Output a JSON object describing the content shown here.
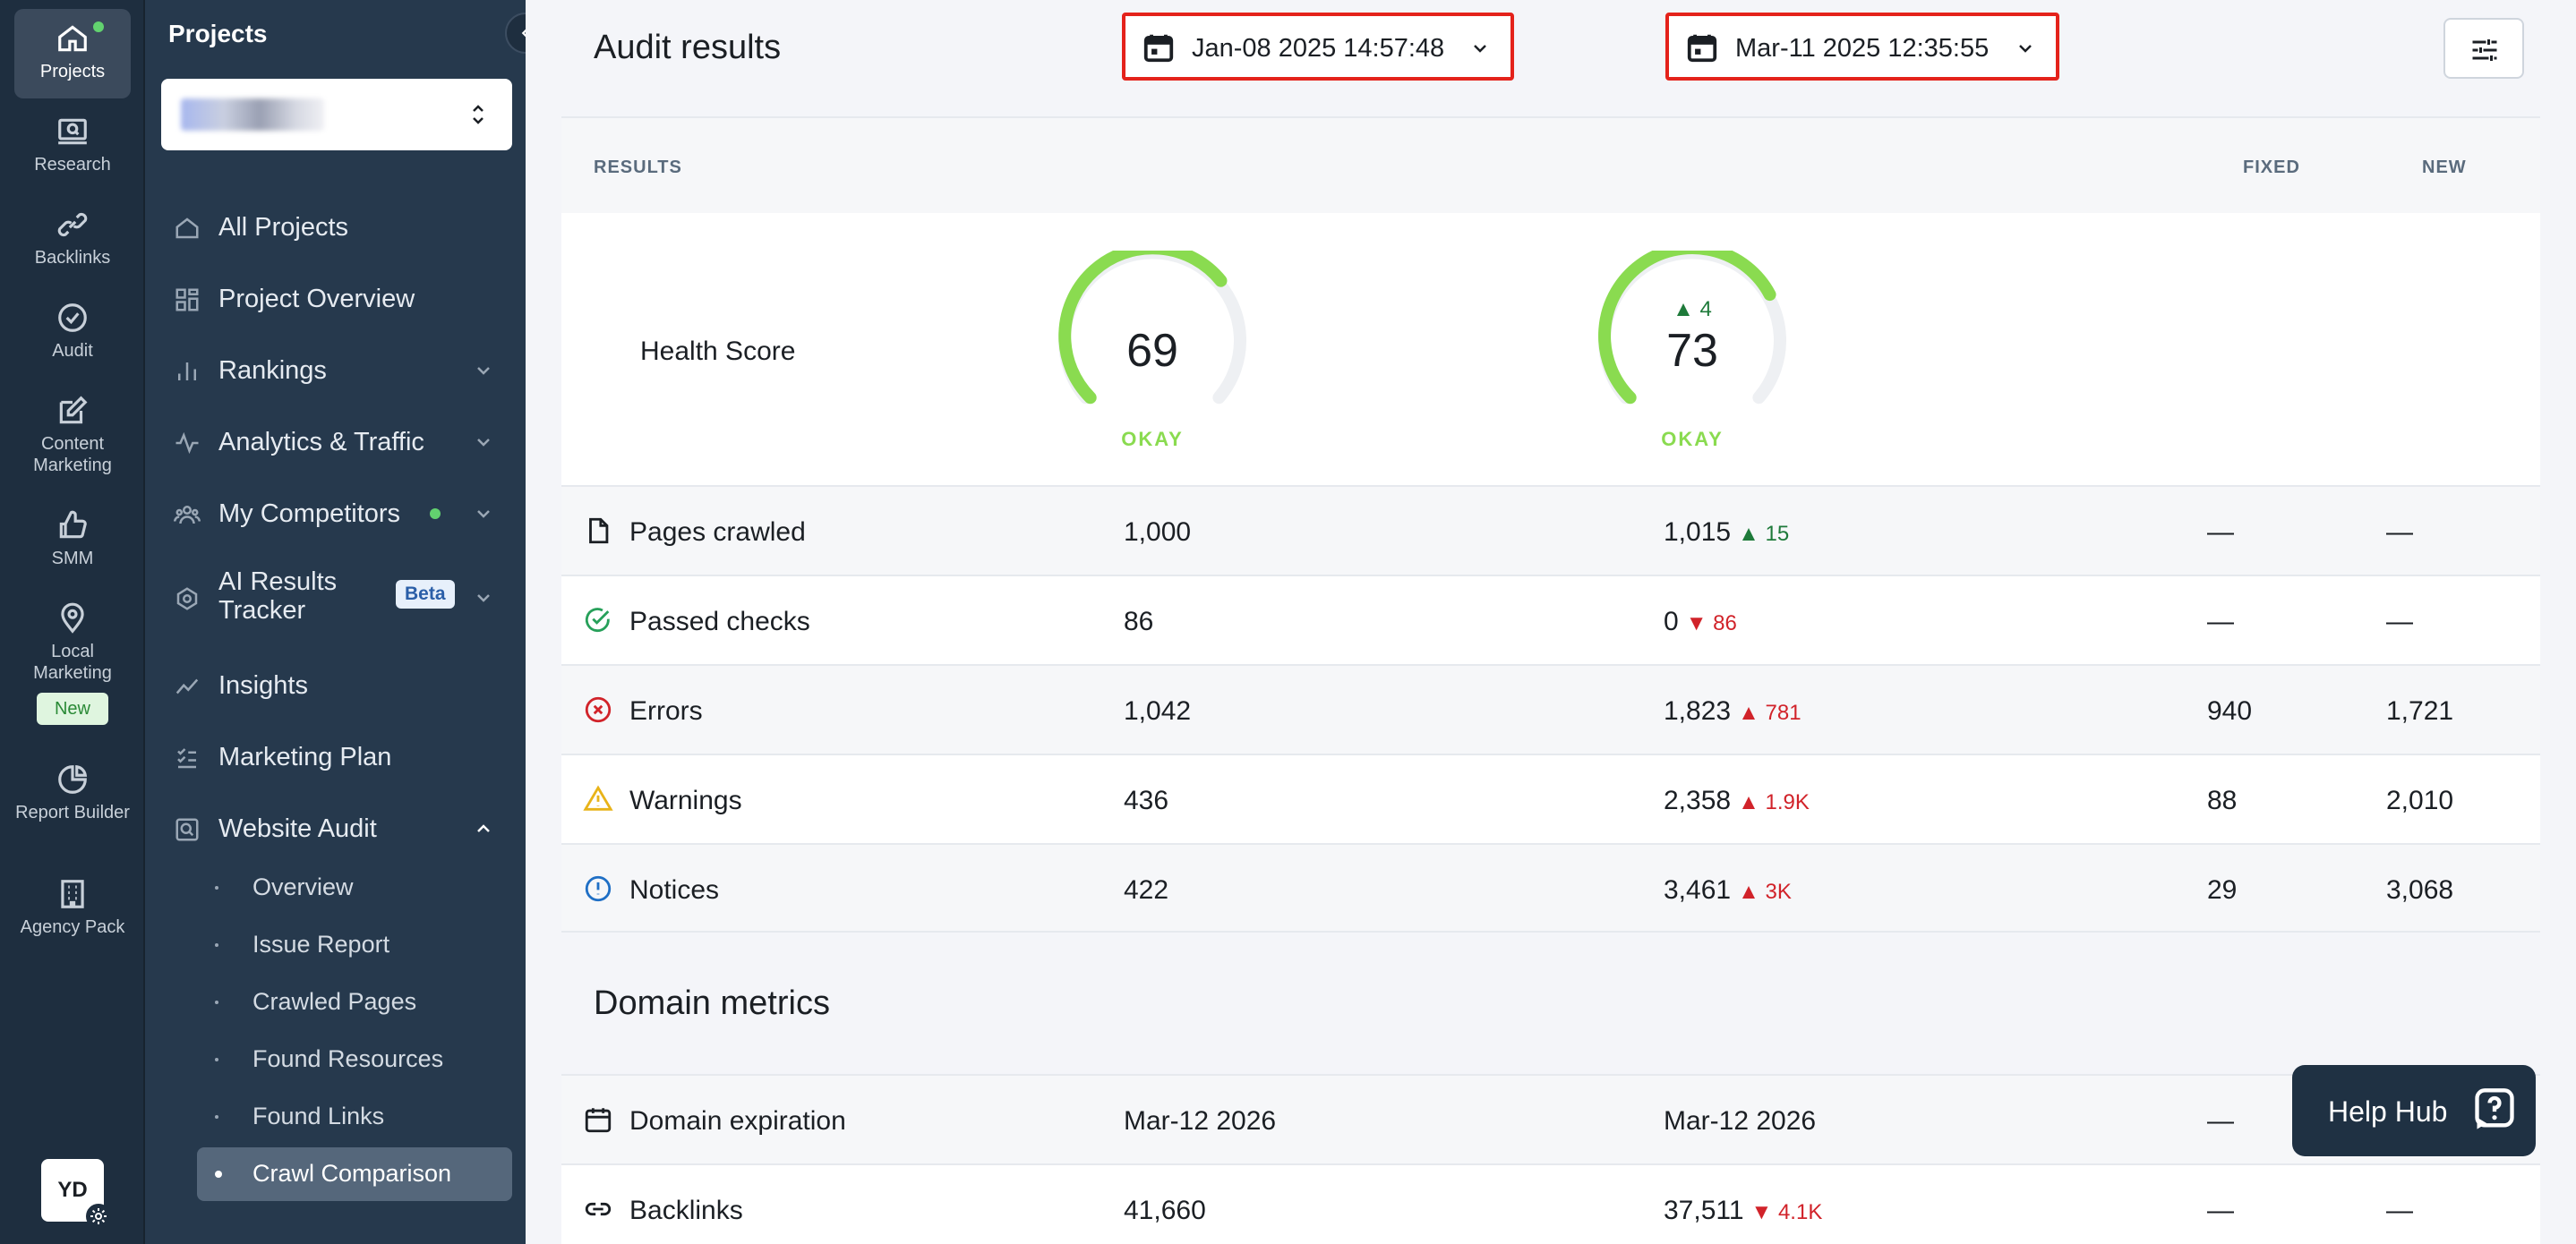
{
  "rail": {
    "items": [
      {
        "label": "Projects",
        "icon": "home-icon"
      },
      {
        "label": "Research",
        "icon": "research-icon"
      },
      {
        "label": "Backlinks",
        "icon": "link-icon"
      },
      {
        "label": "Audit",
        "icon": "check-circle-icon"
      },
      {
        "label": "Content Marketing",
        "icon": "edit-icon"
      },
      {
        "label": "SMM",
        "icon": "thumbs-up-icon"
      },
      {
        "label": "Local Marketing",
        "icon": "map-pin-icon",
        "badge": "New"
      },
      {
        "label": "Report Builder",
        "icon": "pie-chart-icon"
      },
      {
        "label": "Agency Pack",
        "icon": "building-icon"
      }
    ],
    "avatar": "YD"
  },
  "sidebar": {
    "title": "Projects",
    "nav": [
      {
        "label": "All Projects"
      },
      {
        "label": "Project Overview"
      },
      {
        "label": "Rankings"
      },
      {
        "label": "Analytics & Traffic"
      },
      {
        "label": "My Competitors"
      },
      {
        "label": "AI Results Tracker",
        "badge": "Beta"
      },
      {
        "label": "Insights"
      },
      {
        "label": "Marketing Plan"
      },
      {
        "label": "Website Audit"
      }
    ],
    "sub": [
      {
        "label": "Overview"
      },
      {
        "label": "Issue Report"
      },
      {
        "label": "Crawled Pages"
      },
      {
        "label": "Found Resources"
      },
      {
        "label": "Found Links"
      },
      {
        "label": "Crawl Comparison"
      }
    ]
  },
  "header": {
    "title": "Audit results",
    "date1": "Jan-08 2025 14:57:48",
    "date2": "Mar-11 2025 12:35:55"
  },
  "table": {
    "col_results": "RESULTS",
    "col_fixed": "FIXED",
    "col_new": "NEW",
    "health": {
      "label": "Health Score",
      "score1": 69,
      "status1": "OKAY",
      "score2": 73,
      "status2": "OKAY",
      "delta2": "4"
    },
    "rows": [
      {
        "label": "Pages crawled",
        "v1": "1,000",
        "v2": "1,015",
        "delta": "15",
        "fixed": "—",
        "new": "—"
      },
      {
        "label": "Passed checks",
        "v1": "86",
        "v2": "0",
        "delta": "86",
        "fixed": "—",
        "new": "—"
      },
      {
        "label": "Errors",
        "v1": "1,042",
        "v2": "1,823",
        "delta": "781",
        "fixed": "940",
        "new": "1,721"
      },
      {
        "label": "Warnings",
        "v1": "436",
        "v2": "2,358",
        "delta": "1.9K",
        "fixed": "88",
        "new": "2,010"
      },
      {
        "label": "Notices",
        "v1": "422",
        "v2": "3,461",
        "delta": "3K",
        "fixed": "29",
        "new": "3,068"
      }
    ]
  },
  "domain": {
    "title": "Domain metrics",
    "rows": [
      {
        "label": "Domain expiration",
        "v1": "Mar-12 2026",
        "v2": "Mar-12 2026",
        "delta": "",
        "fixed": "—",
        "new": ""
      },
      {
        "label": "Backlinks",
        "v1": "41,660",
        "v2": "37,511",
        "delta": "4.1K",
        "fixed": "—",
        "new": "—"
      }
    ]
  },
  "help_hub": {
    "label": "Help Hub"
  },
  "colors": {
    "gauge_green": "#8adb50",
    "accent_red": "#e4221b",
    "rail_bg": "#1e2e3f",
    "sidebar_bg": "#26394d"
  }
}
